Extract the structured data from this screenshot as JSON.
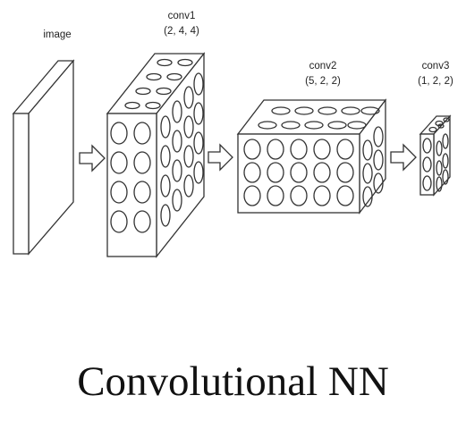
{
  "diagram": {
    "image_label": "image",
    "layers": [
      {
        "name": "conv1",
        "shape": "(2, 4, 4)"
      },
      {
        "name": "conv2",
        "shape": "(5, 2, 2)"
      },
      {
        "name": "conv3",
        "shape": "(1, 2, 2)"
      }
    ]
  },
  "caption": "Convolutional NN"
}
